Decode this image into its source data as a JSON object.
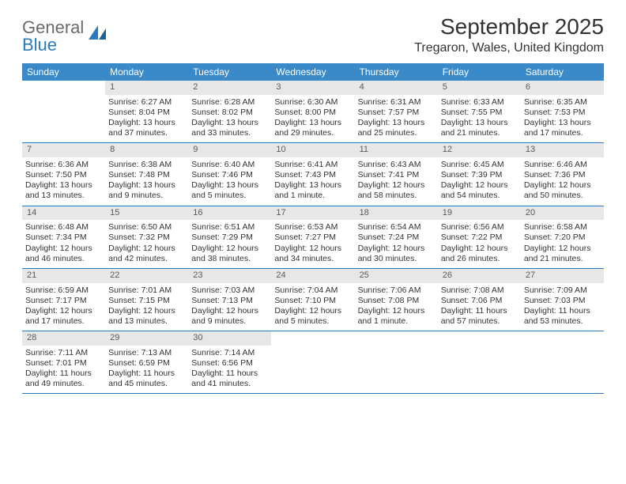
{
  "brand": {
    "part1": "General",
    "part2": "Blue"
  },
  "title": "September 2025",
  "location": "Tregaron, Wales, United Kingdom",
  "colors": {
    "header_bg": "#3a89c9",
    "header_text": "#ffffff",
    "daynum_bg": "#e7e7e7",
    "rule": "#2a7bbf",
    "text": "#333333"
  },
  "day_headers": [
    "Sunday",
    "Monday",
    "Tuesday",
    "Wednesday",
    "Thursday",
    "Friday",
    "Saturday"
  ],
  "weeks": [
    [
      {
        "n": "",
        "sr": "",
        "ss": "",
        "dl": ""
      },
      {
        "n": "1",
        "sr": "Sunrise: 6:27 AM",
        "ss": "Sunset: 8:04 PM",
        "dl": "Daylight: 13 hours and 37 minutes."
      },
      {
        "n": "2",
        "sr": "Sunrise: 6:28 AM",
        "ss": "Sunset: 8:02 PM",
        "dl": "Daylight: 13 hours and 33 minutes."
      },
      {
        "n": "3",
        "sr": "Sunrise: 6:30 AM",
        "ss": "Sunset: 8:00 PM",
        "dl": "Daylight: 13 hours and 29 minutes."
      },
      {
        "n": "4",
        "sr": "Sunrise: 6:31 AM",
        "ss": "Sunset: 7:57 PM",
        "dl": "Daylight: 13 hours and 25 minutes."
      },
      {
        "n": "5",
        "sr": "Sunrise: 6:33 AM",
        "ss": "Sunset: 7:55 PM",
        "dl": "Daylight: 13 hours and 21 minutes."
      },
      {
        "n": "6",
        "sr": "Sunrise: 6:35 AM",
        "ss": "Sunset: 7:53 PM",
        "dl": "Daylight: 13 hours and 17 minutes."
      }
    ],
    [
      {
        "n": "7",
        "sr": "Sunrise: 6:36 AM",
        "ss": "Sunset: 7:50 PM",
        "dl": "Daylight: 13 hours and 13 minutes."
      },
      {
        "n": "8",
        "sr": "Sunrise: 6:38 AM",
        "ss": "Sunset: 7:48 PM",
        "dl": "Daylight: 13 hours and 9 minutes."
      },
      {
        "n": "9",
        "sr": "Sunrise: 6:40 AM",
        "ss": "Sunset: 7:46 PM",
        "dl": "Daylight: 13 hours and 5 minutes."
      },
      {
        "n": "10",
        "sr": "Sunrise: 6:41 AM",
        "ss": "Sunset: 7:43 PM",
        "dl": "Daylight: 13 hours and 1 minute."
      },
      {
        "n": "11",
        "sr": "Sunrise: 6:43 AM",
        "ss": "Sunset: 7:41 PM",
        "dl": "Daylight: 12 hours and 58 minutes."
      },
      {
        "n": "12",
        "sr": "Sunrise: 6:45 AM",
        "ss": "Sunset: 7:39 PM",
        "dl": "Daylight: 12 hours and 54 minutes."
      },
      {
        "n": "13",
        "sr": "Sunrise: 6:46 AM",
        "ss": "Sunset: 7:36 PM",
        "dl": "Daylight: 12 hours and 50 minutes."
      }
    ],
    [
      {
        "n": "14",
        "sr": "Sunrise: 6:48 AM",
        "ss": "Sunset: 7:34 PM",
        "dl": "Daylight: 12 hours and 46 minutes."
      },
      {
        "n": "15",
        "sr": "Sunrise: 6:50 AM",
        "ss": "Sunset: 7:32 PM",
        "dl": "Daylight: 12 hours and 42 minutes."
      },
      {
        "n": "16",
        "sr": "Sunrise: 6:51 AM",
        "ss": "Sunset: 7:29 PM",
        "dl": "Daylight: 12 hours and 38 minutes."
      },
      {
        "n": "17",
        "sr": "Sunrise: 6:53 AM",
        "ss": "Sunset: 7:27 PM",
        "dl": "Daylight: 12 hours and 34 minutes."
      },
      {
        "n": "18",
        "sr": "Sunrise: 6:54 AM",
        "ss": "Sunset: 7:24 PM",
        "dl": "Daylight: 12 hours and 30 minutes."
      },
      {
        "n": "19",
        "sr": "Sunrise: 6:56 AM",
        "ss": "Sunset: 7:22 PM",
        "dl": "Daylight: 12 hours and 26 minutes."
      },
      {
        "n": "20",
        "sr": "Sunrise: 6:58 AM",
        "ss": "Sunset: 7:20 PM",
        "dl": "Daylight: 12 hours and 21 minutes."
      }
    ],
    [
      {
        "n": "21",
        "sr": "Sunrise: 6:59 AM",
        "ss": "Sunset: 7:17 PM",
        "dl": "Daylight: 12 hours and 17 minutes."
      },
      {
        "n": "22",
        "sr": "Sunrise: 7:01 AM",
        "ss": "Sunset: 7:15 PM",
        "dl": "Daylight: 12 hours and 13 minutes."
      },
      {
        "n": "23",
        "sr": "Sunrise: 7:03 AM",
        "ss": "Sunset: 7:13 PM",
        "dl": "Daylight: 12 hours and 9 minutes."
      },
      {
        "n": "24",
        "sr": "Sunrise: 7:04 AM",
        "ss": "Sunset: 7:10 PM",
        "dl": "Daylight: 12 hours and 5 minutes."
      },
      {
        "n": "25",
        "sr": "Sunrise: 7:06 AM",
        "ss": "Sunset: 7:08 PM",
        "dl": "Daylight: 12 hours and 1 minute."
      },
      {
        "n": "26",
        "sr": "Sunrise: 7:08 AM",
        "ss": "Sunset: 7:06 PM",
        "dl": "Daylight: 11 hours and 57 minutes."
      },
      {
        "n": "27",
        "sr": "Sunrise: 7:09 AM",
        "ss": "Sunset: 7:03 PM",
        "dl": "Daylight: 11 hours and 53 minutes."
      }
    ],
    [
      {
        "n": "28",
        "sr": "Sunrise: 7:11 AM",
        "ss": "Sunset: 7:01 PM",
        "dl": "Daylight: 11 hours and 49 minutes."
      },
      {
        "n": "29",
        "sr": "Sunrise: 7:13 AM",
        "ss": "Sunset: 6:59 PM",
        "dl": "Daylight: 11 hours and 45 minutes."
      },
      {
        "n": "30",
        "sr": "Sunrise: 7:14 AM",
        "ss": "Sunset: 6:56 PM",
        "dl": "Daylight: 11 hours and 41 minutes."
      },
      {
        "n": "",
        "sr": "",
        "ss": "",
        "dl": ""
      },
      {
        "n": "",
        "sr": "",
        "ss": "",
        "dl": ""
      },
      {
        "n": "",
        "sr": "",
        "ss": "",
        "dl": ""
      },
      {
        "n": "",
        "sr": "",
        "ss": "",
        "dl": ""
      }
    ]
  ]
}
